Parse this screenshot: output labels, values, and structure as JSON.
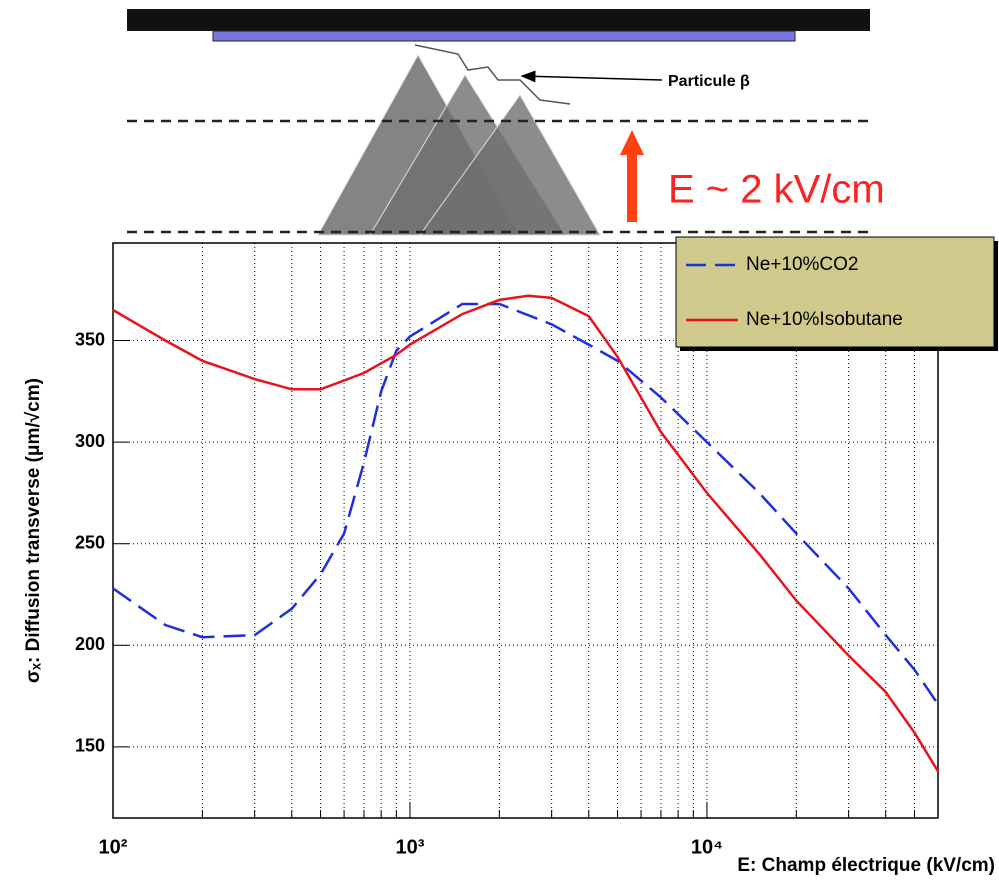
{
  "diagram": {
    "particle_label": "Particule β",
    "field_label": "E ~ 2 kV/cm"
  },
  "chart_data": {
    "type": "line",
    "x_label": "E: Champ électrique (kV/cm)",
    "y_label": "σₓ: Diffusion transverse (μm/√cm)",
    "x_scale": "log",
    "grid": true,
    "legend": "top-right",
    "xlim": [
      100,
      60000
    ],
    "ylim": [
      115,
      398
    ],
    "xticks": [
      {
        "value": 100,
        "label": "10²"
      },
      {
        "value": 1000,
        "label": "10³"
      },
      {
        "value": 10000,
        "label": "10⁴"
      }
    ],
    "xminor": [
      200,
      300,
      400,
      500,
      600,
      700,
      800,
      900,
      2000,
      3000,
      4000,
      5000,
      6000,
      7000,
      8000,
      9000,
      20000,
      30000,
      40000,
      50000,
      60000
    ],
    "yticks": [
      150,
      200,
      250,
      300,
      350
    ],
    "series": [
      {
        "name": "Ne+10%CO2",
        "color": "#1f2fe0",
        "dashed": true,
        "x": [
          100,
          150,
          200,
          300,
          400,
          500,
          600,
          700,
          800,
          900,
          1000,
          1500,
          2000,
          3000,
          4000,
          5000,
          7000,
          10000,
          15000,
          20000,
          30000,
          40000,
          50000,
          60000
        ],
        "values": [
          228,
          210,
          204,
          205,
          218,
          235,
          255,
          290,
          325,
          345,
          352,
          368,
          368,
          358,
          348,
          340,
          322,
          300,
          275,
          255,
          228,
          205,
          188,
          171
        ]
      },
      {
        "name": "Ne+10%Isobutane",
        "color": "#e8141a",
        "dashed": false,
        "x": [
          100,
          150,
          200,
          300,
          400,
          500,
          700,
          900,
          1000,
          1500,
          2000,
          2500,
          3000,
          4000,
          5000,
          7000,
          10000,
          15000,
          20000,
          30000,
          40000,
          50000,
          60000
        ],
        "values": [
          365,
          350,
          340,
          331,
          326,
          326,
          334,
          343,
          348,
          363,
          370,
          372,
          371,
          362,
          342,
          305,
          275,
          245,
          222,
          195,
          177,
          157,
          138
        ]
      }
    ]
  }
}
